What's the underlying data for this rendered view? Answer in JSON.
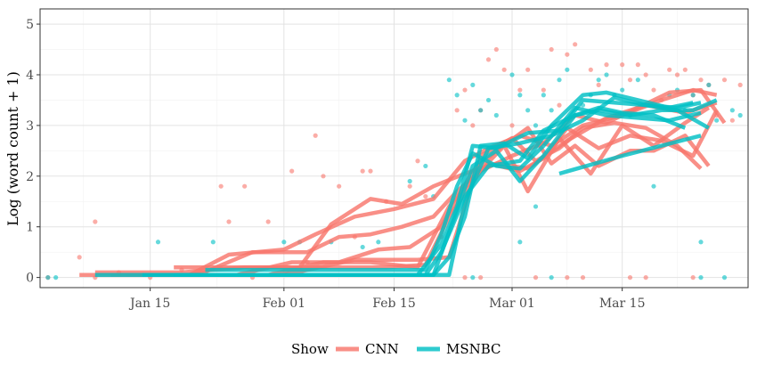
{
  "chart_data": {
    "type": "line",
    "title": "",
    "xlabel": "",
    "ylabel": "Log (word count + 1)",
    "x_start": "2020-01-01",
    "x_end": "2020-03-31",
    "ylim": [
      -0.2,
      5.3
    ],
    "y_ticks": [
      0,
      1,
      2,
      3,
      4,
      5
    ],
    "x_ticks": [
      {
        "date": "2020-01-15",
        "label": "Jan 15"
      },
      {
        "date": "2020-02-01",
        "label": "Feb 01"
      },
      {
        "date": "2020-02-15",
        "label": "Feb 15"
      },
      {
        "date": "2020-03-01",
        "label": "Mar 01"
      },
      {
        "date": "2020-03-15",
        "label": "Mar 15"
      }
    ],
    "grid": true,
    "legend": {
      "position": "bottom",
      "title": "Show",
      "entries": [
        "CNN",
        "MSNBC"
      ]
    },
    "colors": {
      "CNN": "#F8766D",
      "MSNBC": "#00BFC4"
    },
    "series": [
      {
        "group": "CNN",
        "x": [
          "2020-01-06",
          "2020-01-20",
          "2020-01-25",
          "2020-02-01",
          "2020-02-05",
          "2020-02-10",
          "2020-02-15",
          "2020-02-20",
          "2020-02-24",
          "2020-02-27",
          "2020-03-02",
          "2020-03-06",
          "2020-03-10",
          "2020-03-15",
          "2020-03-20",
          "2020-03-24",
          "2020-03-27"
        ],
        "y": [
          0.05,
          0.05,
          0.45,
          0.55,
          0.85,
          1.2,
          1.35,
          1.55,
          2.3,
          2.55,
          2.8,
          2.6,
          3.0,
          3.2,
          3.5,
          3.7,
          3.6
        ]
      },
      {
        "group": "CNN",
        "x": [
          "2020-01-08",
          "2020-01-19",
          "2020-01-27",
          "2020-02-03",
          "2020-02-07",
          "2020-02-12",
          "2020-02-16",
          "2020-02-20",
          "2020-02-24",
          "2020-02-28",
          "2020-03-03",
          "2020-03-08",
          "2020-03-13",
          "2020-03-18",
          "2020-03-23",
          "2020-03-27"
        ],
        "y": [
          0.1,
          0.1,
          0.2,
          0.2,
          1.05,
          1.55,
          1.45,
          1.8,
          2.05,
          2.25,
          2.15,
          2.7,
          3.15,
          3.4,
          3.25,
          3.45
        ]
      },
      {
        "group": "CNN",
        "x": [
          "2020-01-10",
          "2020-01-21",
          "2020-01-28",
          "2020-02-04",
          "2020-02-08",
          "2020-02-12",
          "2020-02-16",
          "2020-02-20",
          "2020-02-23",
          "2020-02-27",
          "2020-03-02",
          "2020-03-05",
          "2020-03-08",
          "2020-03-12",
          "2020-03-16",
          "2020-03-20",
          "2020-03-24",
          "2020-03-27"
        ],
        "y": [
          0.05,
          0.05,
          0.5,
          0.5,
          0.8,
          0.85,
          1.0,
          1.2,
          1.7,
          2.25,
          2.1,
          2.35,
          2.95,
          2.55,
          2.8,
          2.7,
          2.4,
          3.3
        ]
      },
      {
        "group": "CNN",
        "x": [
          "2020-01-12",
          "2020-01-26",
          "2020-02-02",
          "2020-02-08",
          "2020-02-13",
          "2020-02-17",
          "2020-02-21",
          "2020-02-25",
          "2020-02-28",
          "2020-03-03",
          "2020-03-06",
          "2020-03-09",
          "2020-03-12",
          "2020-03-16",
          "2020-03-19",
          "2020-03-23",
          "2020-03-26"
        ],
        "y": [
          0.05,
          0.05,
          0.3,
          0.3,
          0.55,
          0.6,
          1.0,
          2.1,
          2.5,
          2.95,
          2.25,
          2.6,
          2.2,
          2.5,
          2.5,
          2.8,
          2.2
        ]
      },
      {
        "group": "CNN",
        "x": [
          "2020-01-16",
          "2020-02-01",
          "2020-02-10",
          "2020-02-18",
          "2020-02-22",
          "2020-02-26",
          "2020-03-01",
          "2020-03-04",
          "2020-03-07",
          "2020-03-10",
          "2020-03-14",
          "2020-03-18",
          "2020-03-22",
          "2020-03-25"
        ],
        "y": [
          0.05,
          0.05,
          0.35,
          0.35,
          0.4,
          2.4,
          2.75,
          2.3,
          2.55,
          2.95,
          3.05,
          2.95,
          2.6,
          2.15
        ]
      },
      {
        "group": "CNN",
        "x": [
          "2020-01-20",
          "2020-01-30",
          "2020-02-06",
          "2020-02-12",
          "2020-02-18",
          "2020-02-22",
          "2020-02-25",
          "2020-02-29",
          "2020-03-03",
          "2020-03-07",
          "2020-03-11",
          "2020-03-15",
          "2020-03-19",
          "2020-03-23",
          "2020-03-26"
        ],
        "y": [
          0.05,
          0.05,
          0.3,
          0.3,
          0.2,
          1.4,
          1.95,
          2.6,
          1.7,
          2.75,
          2.05,
          3.0,
          2.6,
          3.05,
          3.35
        ]
      },
      {
        "group": "CNN",
        "x": [
          "2020-01-18",
          "2020-02-14",
          "2020-02-19",
          "2020-02-22",
          "2020-02-26",
          "2020-03-01",
          "2020-03-05",
          "2020-03-09",
          "2020-03-13",
          "2020-03-17",
          "2020-03-21",
          "2020-03-25",
          "2020-03-28"
        ],
        "y": [
          0.2,
          0.2,
          0.25,
          1.2,
          2.1,
          2.4,
          2.65,
          3.2,
          3.05,
          3.35,
          3.65,
          3.7,
          3.05
        ]
      },
      {
        "group": "MSNBC",
        "x": [
          "2020-01-14",
          "2020-02-18",
          "2020-02-21",
          "2020-02-23",
          "2020-02-25",
          "2020-02-28",
          "2020-03-03",
          "2020-03-07",
          "2020-03-10",
          "2020-03-14",
          "2020-03-18",
          "2020-03-22",
          "2020-03-25"
        ],
        "y": [
          0.05,
          0.05,
          0.65,
          1.4,
          2.6,
          2.55,
          2.85,
          2.9,
          3.5,
          3.45,
          3.4,
          3.35,
          3.45
        ]
      },
      {
        "group": "MSNBC",
        "x": [
          "2020-01-08",
          "2020-02-19",
          "2020-02-21",
          "2020-02-24",
          "2020-02-27",
          "2020-03-02",
          "2020-03-05",
          "2020-03-09",
          "2020-03-12",
          "2020-03-16",
          "2020-03-20",
          "2020-03-24",
          "2020-03-27"
        ],
        "y": [
          0.05,
          0.05,
          0.5,
          1.6,
          2.2,
          2.3,
          2.9,
          3.2,
          3.3,
          3.2,
          3.3,
          3.3,
          3.5
        ]
      },
      {
        "group": "MSNBC",
        "x": [
          "2020-01-18",
          "2020-02-20",
          "2020-02-22",
          "2020-02-24",
          "2020-02-26",
          "2020-02-29",
          "2020-03-03",
          "2020-03-06",
          "2020-03-10",
          "2020-03-13",
          "2020-03-17",
          "2020-03-21",
          "2020-03-24"
        ],
        "y": [
          0.05,
          0.05,
          0.4,
          1.2,
          2.6,
          2.65,
          2.35,
          3.0,
          3.6,
          3.65,
          3.5,
          3.35,
          3.45
        ]
      },
      {
        "group": "MSNBC",
        "x": [
          "2020-01-22",
          "2020-02-19",
          "2020-02-21",
          "2020-02-23",
          "2020-02-25",
          "2020-02-28",
          "2020-03-02",
          "2020-03-05",
          "2020-03-09",
          "2020-03-13",
          "2020-03-17",
          "2020-03-21",
          "2020-03-25"
        ],
        "y": [
          0.15,
          0.15,
          0.85,
          1.8,
          2.45,
          2.2,
          2.15,
          2.6,
          3.35,
          3.2,
          3.15,
          3.1,
          3.25
        ]
      },
      {
        "group": "MSNBC",
        "x": [
          "2020-01-20",
          "2020-02-20",
          "2020-02-22",
          "2020-02-25",
          "2020-02-28",
          "2020-03-02",
          "2020-03-05",
          "2020-03-09",
          "2020-03-12",
          "2020-03-15",
          "2020-03-19",
          "2020-03-23"
        ],
        "y": [
          0.05,
          0.05,
          0.9,
          2.2,
          2.5,
          1.9,
          2.4,
          3.2,
          3.35,
          3.25,
          3.2,
          2.95
        ]
      },
      {
        "group": "MSNBC",
        "x": [
          "2020-01-25",
          "2020-02-22",
          "2020-02-24",
          "2020-02-27",
          "2020-03-02",
          "2020-03-06",
          "2020-03-10",
          "2020-03-14",
          "2020-03-18",
          "2020-03-22",
          "2020-03-26"
        ],
        "y": [
          0.05,
          0.05,
          1.5,
          2.55,
          2.65,
          2.8,
          3.1,
          3.55,
          3.4,
          3.3,
          2.95
        ]
      },
      {
        "group": "MSNBC",
        "x": [
          "2020-03-07",
          "2020-03-15",
          "2020-03-25"
        ],
        "y": [
          2.05,
          2.4,
          2.8
        ]
      }
    ],
    "points": {
      "CNN": {
        "x": [
          "2020-01-02",
          "2020-01-06",
          "2020-01-08",
          "2020-01-08",
          "2020-01-11",
          "2020-01-15",
          "2020-01-19",
          "2020-01-24",
          "2020-01-25",
          "2020-01-27",
          "2020-01-28",
          "2020-01-30",
          "2020-02-02",
          "2020-02-04",
          "2020-02-05",
          "2020-02-06",
          "2020-02-08",
          "2020-02-10",
          "2020-02-11",
          "2020-02-12",
          "2020-02-14",
          "2020-02-17",
          "2020-02-18",
          "2020-02-19",
          "2020-02-21",
          "2020-02-23",
          "2020-02-24",
          "2020-02-25",
          "2020-02-26",
          "2020-02-27",
          "2020-02-28",
          "2020-02-29",
          "2020-03-01",
          "2020-03-02",
          "2020-03-03",
          "2020-03-05",
          "2020-03-06",
          "2020-03-07",
          "2020-03-08",
          "2020-03-09",
          "2020-03-11",
          "2020-03-12",
          "2020-03-13",
          "2020-03-15",
          "2020-03-16",
          "2020-03-17",
          "2020-03-18",
          "2020-03-19",
          "2020-03-20",
          "2020-03-21",
          "2020-03-22",
          "2020-03-23",
          "2020-03-24",
          "2020-03-25",
          "2020-03-26",
          "2020-03-27",
          "2020-03-28",
          "2020-03-29",
          "2020-03-30",
          "2020-03-08",
          "2020-03-10",
          "2020-03-16",
          "2020-03-18",
          "2020-03-24",
          "2020-02-24",
          "2020-02-26",
          "2020-03-04"
        ],
        "y": [
          0.0,
          0.4,
          1.1,
          0.0,
          0.1,
          0.0,
          0.15,
          1.8,
          1.1,
          1.8,
          0.0,
          1.1,
          2.1,
          0.3,
          2.8,
          2.0,
          1.8,
          0.8,
          2.1,
          2.1,
          1.5,
          1.8,
          2.3,
          1.6,
          0.8,
          3.3,
          3.7,
          3.0,
          3.3,
          4.3,
          4.5,
          4.1,
          3.0,
          3.7,
          4.1,
          3.7,
          4.5,
          3.4,
          4.4,
          4.6,
          4.1,
          3.8,
          4.2,
          4.2,
          3.9,
          4.2,
          4.0,
          3.7,
          3.5,
          4.1,
          4.0,
          4.1,
          3.6,
          3.9,
          3.8,
          3.2,
          3.9,
          3.1,
          3.8,
          0.0,
          0.0,
          0.0,
          0.0,
          0.0,
          0.0,
          0.0,
          0.0
        ]
      },
      "MSNBC": {
        "x": [
          "2020-01-02",
          "2020-01-03",
          "2020-01-16",
          "2020-01-23",
          "2020-02-01",
          "2020-02-03",
          "2020-02-07",
          "2020-02-11",
          "2020-02-13",
          "2020-02-17",
          "2020-02-19",
          "2020-02-20",
          "2020-02-22",
          "2020-02-23",
          "2020-02-24",
          "2020-02-25",
          "2020-02-26",
          "2020-02-27",
          "2020-02-28",
          "2020-03-01",
          "2020-03-02",
          "2020-03-03",
          "2020-03-04",
          "2020-03-05",
          "2020-03-06",
          "2020-03-07",
          "2020-03-08",
          "2020-03-09",
          "2020-03-10",
          "2020-03-11",
          "2020-03-12",
          "2020-03-13",
          "2020-03-14",
          "2020-03-15",
          "2020-03-16",
          "2020-03-17",
          "2020-03-18",
          "2020-03-19",
          "2020-03-21",
          "2020-03-22",
          "2020-03-23",
          "2020-03-24",
          "2020-03-25",
          "2020-03-26",
          "2020-03-27",
          "2020-03-29",
          "2020-03-30",
          "2020-02-25",
          "2020-03-02",
          "2020-03-04",
          "2020-03-06",
          "2020-03-25",
          "2020-03-28"
        ],
        "y": [
          0.0,
          0.0,
          0.7,
          0.7,
          0.7,
          0.7,
          0.7,
          0.6,
          0.7,
          1.9,
          2.2,
          1.6,
          3.9,
          3.6,
          3.1,
          3.8,
          3.3,
          3.5,
          3.2,
          4.0,
          3.6,
          3.3,
          3.0,
          3.6,
          3.3,
          3.9,
          4.1,
          3.2,
          3.4,
          3.6,
          3.9,
          4.0,
          3.6,
          3.7,
          3.2,
          3.9,
          3.4,
          1.8,
          3.6,
          3.7,
          3.3,
          3.6,
          0.7,
          3.8,
          3.1,
          3.3,
          3.2,
          0.0,
          0.7,
          1.4,
          0.0,
          0.0,
          0.0
        ]
      }
    }
  }
}
